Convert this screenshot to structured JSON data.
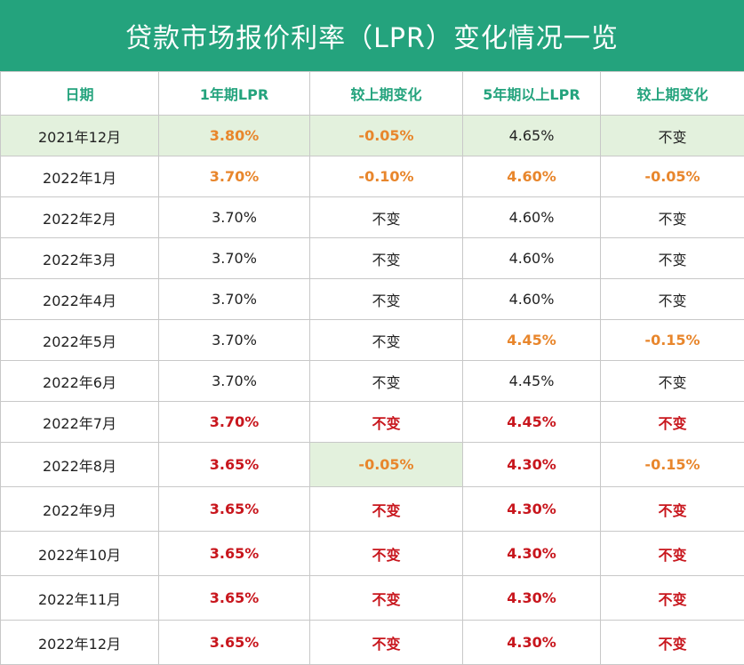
{
  "title": "贷款市场报价利率（LPR）变化情况一览",
  "colors": {
    "header_bg": "#24a37d",
    "orange": "#e8862c",
    "red": "#c8161d",
    "highlight": "#e3f1dd"
  },
  "chart_data": {
    "type": "table",
    "title": "贷款市场报价利率（LPR）变化情况一览",
    "columns": [
      "日期",
      "1年期LPR",
      "较上期变化",
      "5年期以上LPR",
      "较上期变化"
    ],
    "rows": [
      {
        "cells": [
          "2021年12月",
          "3.80%",
          "-0.05%",
          "4.65%",
          "不变"
        ],
        "styles": [
          "plain",
          "orange",
          "orange",
          "plain",
          "plain"
        ],
        "highlight": [
          true,
          true,
          true,
          true,
          true
        ]
      },
      {
        "cells": [
          "2022年1月",
          "3.70%",
          "-0.10%",
          "4.60%",
          "-0.05%"
        ],
        "styles": [
          "plain",
          "orange",
          "orange",
          "orange",
          "orange"
        ],
        "highlight": [
          false,
          false,
          false,
          false,
          false
        ]
      },
      {
        "cells": [
          "2022年2月",
          "3.70%",
          "不变",
          "4.60%",
          "不变"
        ],
        "styles": [
          "plain",
          "plain",
          "plain",
          "plain",
          "plain"
        ],
        "highlight": [
          false,
          false,
          false,
          false,
          false
        ]
      },
      {
        "cells": [
          "2022年3月",
          "3.70%",
          "不变",
          "4.60%",
          "不变"
        ],
        "styles": [
          "plain",
          "plain",
          "plain",
          "plain",
          "plain"
        ],
        "highlight": [
          false,
          false,
          false,
          false,
          false
        ]
      },
      {
        "cells": [
          "2022年4月",
          "3.70%",
          "不变",
          "4.60%",
          "不变"
        ],
        "styles": [
          "plain",
          "plain",
          "plain",
          "plain",
          "plain"
        ],
        "highlight": [
          false,
          false,
          false,
          false,
          false
        ]
      },
      {
        "cells": [
          "2022年5月",
          "3.70%",
          "不变",
          "4.45%",
          "-0.15%"
        ],
        "styles": [
          "plain",
          "plain",
          "plain",
          "orange",
          "orange"
        ],
        "highlight": [
          false,
          false,
          false,
          false,
          false
        ]
      },
      {
        "cells": [
          "2022年6月",
          "3.70%",
          "不变",
          "4.45%",
          "不变"
        ],
        "styles": [
          "plain",
          "plain",
          "plain",
          "plain",
          "plain"
        ],
        "highlight": [
          false,
          false,
          false,
          false,
          false
        ]
      },
      {
        "cells": [
          "2022年7月",
          "3.70%",
          "不变",
          "4.45%",
          "不变"
        ],
        "styles": [
          "plain",
          "red",
          "red",
          "red",
          "red"
        ],
        "highlight": [
          false,
          false,
          false,
          false,
          false
        ]
      },
      {
        "cells": [
          "2022年8月",
          "3.65%",
          "-0.05%",
          "4.30%",
          "-0.15%"
        ],
        "styles": [
          "plain",
          "red",
          "orange",
          "red",
          "orange"
        ],
        "highlight": [
          false,
          false,
          true,
          false,
          false
        ]
      },
      {
        "cells": [
          "2022年9月",
          "3.65%",
          "不变",
          "4.30%",
          "不变"
        ],
        "styles": [
          "plain",
          "red",
          "red",
          "red",
          "red"
        ],
        "highlight": [
          false,
          false,
          false,
          false,
          false
        ]
      },
      {
        "cells": [
          "2022年10月",
          "3.65%",
          "不变",
          "4.30%",
          "不变"
        ],
        "styles": [
          "plain",
          "red",
          "red",
          "red",
          "red"
        ],
        "highlight": [
          false,
          false,
          false,
          false,
          false
        ]
      },
      {
        "cells": [
          "2022年11月",
          "3.65%",
          "不变",
          "4.30%",
          "不变"
        ],
        "styles": [
          "plain",
          "red",
          "red",
          "red",
          "red"
        ],
        "highlight": [
          false,
          false,
          false,
          false,
          false
        ]
      },
      {
        "cells": [
          "2022年12月",
          "3.65%",
          "不变",
          "4.30%",
          "不变"
        ],
        "styles": [
          "plain",
          "red",
          "red",
          "red",
          "red"
        ],
        "highlight": [
          false,
          false,
          false,
          false,
          false
        ]
      }
    ]
  }
}
